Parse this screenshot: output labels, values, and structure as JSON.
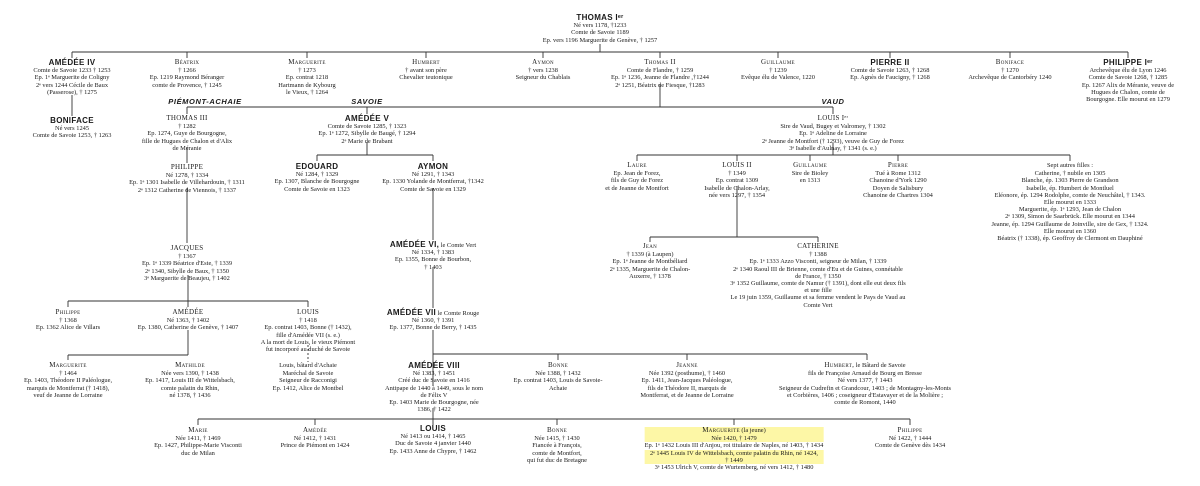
{
  "branches": {
    "piemont": "PIÉMONT-ACHAIE",
    "savoie": "SAVOIE",
    "vaud": "VAUD"
  },
  "highlight_color": "#fdf7a6",
  "nodes": {
    "thomas1": {
      "name": "THOMAS Iᵉʳ",
      "lines": [
        "Né vers 1178, †1233",
        "Comte de Savoie 1189",
        "Ep. vers 1196 Marguerite de Genève, † 1257"
      ]
    },
    "amedee4": {
      "name": "AMÉDÉE IV",
      "lines": [
        "Comte de Savoie 1233 † 1253",
        "Ep. 1ᵉ Marguerite de Coligny",
        "2ᵉ vers 1244 Cécile de Baux",
        "(Passerose), † 1275"
      ]
    },
    "beatrix": {
      "name": "Béatrix",
      "lines": [
        "† 1266",
        "Ep. 1219 Raymond Béranger",
        "comte de Provence, † 1245"
      ]
    },
    "marguerite1": {
      "name": "Marguerite",
      "lines": [
        "† 1273",
        "Ep. contrat 1218",
        "Hartmann de Kybourg",
        "le Vieux, † 1264"
      ]
    },
    "humbert1": {
      "name": "Humbert",
      "lines": [
        "† avant son père",
        "Chevalier teutonique"
      ]
    },
    "aymon1": {
      "name": "Aymon",
      "lines": [
        "† vers 1238",
        "Seigneur du Chablais"
      ]
    },
    "thomas2": {
      "name": "Thomas II",
      "lines": [
        "Comte de Flandre, † 1259",
        "Ep. 1ᵉ 1236, Jeanne de Flandre ,†1244",
        "2ᵉ 1251, Béatrix de Fiesque, †1283"
      ]
    },
    "guillaume1": {
      "name": "Guillaume",
      "lines": [
        "† 1239",
        "Evêque élu de Valence, 1220"
      ]
    },
    "pierre2": {
      "name": "PIERRE II",
      "lines": [
        "Comte de Savoie 1263, † 1268",
        "Ep. Agnès de Faucigny, † 1268"
      ]
    },
    "boniface1": {
      "name": "Boniface",
      "lines": [
        "† 1270",
        "Archevêque de Cantorbéry 1240"
      ]
    },
    "philippe1": {
      "name": "PHILIPPE Iᵉʳ",
      "lines": [
        "Archevêque élu de Lyon 1246",
        "Comte de Savoie 1268, † 1285",
        "Ep. 1267 Alix de Méranie, veuve de",
        "Hugues de Chalon, comte de",
        "Bourgogne. Elle mourut en 1279"
      ]
    },
    "boniface2": {
      "name": "BONIFACE",
      "lines": [
        "Né vers 1245",
        "Comte de Savoie 1253, † 1263"
      ]
    },
    "thomas3": {
      "name": "THOMAS III",
      "lines": [
        "† 1282",
        "Ep. 1274, Guye de Bourgogne,",
        "fille de Hugues de Chalon et d'Alix",
        "de Méranie"
      ]
    },
    "amedee5": {
      "name": "AMÉDÉE V",
      "lines": [
        "Comte de Savoie 1285, † 1323",
        "Ep. 1ᵉ 1272, Sibylle de Baugé, † 1294",
        "2ᵉ Marie de Brabant"
      ]
    },
    "louis1": {
      "name": "LOUIS Iᵉʳ",
      "lines": [
        "Sire de Vaud, Bugey et Valromey, † 1302",
        "Ep. 1ᵉ Adeline de Lorraine",
        "2ᵉ Jeanne de Montfort († 1293), veuve de Guy de Forez",
        "3ᵉ Isabelle d'Aulnay, † 1341 (s. e.)"
      ]
    },
    "philippe2": {
      "name": "PHILIPPE",
      "lines": [
        "Né 1278, † 1334",
        "Ep. 1ᵉ 1301 Isabelle de Villehardouin, † 1311",
        "2ᵉ 1312 Catherine de Viennois, † 1337"
      ]
    },
    "edouard": {
      "name": "EDOUARD",
      "lines": [
        "Né 1284, † 1329",
        "Ep. 1307, Blanche de Bourgogne",
        "Comte de Savoie en 1323"
      ]
    },
    "aymon2": {
      "name": "AYMON",
      "lines": [
        "Né 1291, † 1343",
        "Ep. 1330 Yolande de Montferrat, †1342",
        "Comte de Savoie en 1329"
      ]
    },
    "laure": {
      "name": "Laure",
      "lines": [
        "Ep. Jean de Forez,",
        "fils de Guy de Forez",
        "et de Jeanne de Montfort"
      ]
    },
    "louis2": {
      "name": "LOUIS II",
      "lines": [
        "† 1349",
        "Ep. contrat 1309",
        "Isabelle de Chalon-Arlay,",
        "née vers 1297, † 1354"
      ]
    },
    "guillaume2": {
      "name": "Guillaume",
      "lines": [
        "Sire de Bioley",
        "en 1313"
      ]
    },
    "pierre": {
      "name": "Pierre",
      "lines": [
        "Tué à Rome 1312",
        "Chanoine d'York 1290",
        "Doyen de Salisbury",
        "Chanoine de Chartres 1304"
      ]
    },
    "sept_filles": {
      "name": "Sept autres filles :",
      "lines": [
        "Catherine, † nubile en 1305",
        "Blanche, ép. 1303 Pierre de Grandson",
        "Isabelle, ép. Humbert de Montluel",
        "Eléonore, ép. 1294 Rodolphe, comte de Neuchâtel, † 1343.",
        "Elle mourut en 1333",
        "Marguerite, ép. 1ᵉ 1293, Jean de Chalon",
        "2ᵉ 1309, Simon de Saarbrück. Elle mourut en 1344",
        "Jeanne, ép. 1294 Guillaume de Joinville, sire de Gex, † 1324.",
        "Elle mourut en 1360",
        "Béatrix († 1338), ép. Geoffroy de Clermont en Dauphiné"
      ]
    },
    "jacques": {
      "name": "JACQUES",
      "lines": [
        "† 1367",
        "Ep. 1ᵉ 1339 Béatrice d'Este, † 1339",
        "2ᵉ 1340, Sibylle de Baux, † 1350",
        "3ᵉ Marguerite de Beaujeu, † 1402"
      ]
    },
    "amedee6": {
      "name": "AMÉDÉE VI,",
      "suffix": " le Comte Vert",
      "lines": [
        "Né 1334, † 1383",
        "Ep. 1355, Bonne de Bourbon,",
        "† 1403"
      ]
    },
    "jean": {
      "name": "Jean",
      "lines": [
        "† 1339 (à Laupen)",
        "Ep. 1ᵉ Jeanne de Montbéliard",
        "2ᵉ 1335, Marguerite de Chalon-",
        "Auxerre, † 1378"
      ]
    },
    "catherine": {
      "name": "CATHERINE",
      "lines": [
        "† 1388",
        "Ep. 1ᵉ 1333 Azzo Visconti, seigneur de Milan, † 1339",
        "2ᵉ 1340 Raoul III de Brienne, comte d'Eu et de Guines, connétable",
        "de France, † 1350",
        "3ᵉ 1352 Guillaume, comte de Namur († 1391), dont elle eut deux fils",
        "et une fille",
        "Le 19 juin 1359, Guillaume et sa femme vendent le Pays de Vaud au",
        "Comte Vert"
      ]
    },
    "philippe3": {
      "name": "Philippe",
      "lines": [
        "† 1368",
        "Ep. 1362 Alice de Villars"
      ]
    },
    "amedee_a": {
      "name": "AMÉDÉE",
      "lines": [
        "Né 1363, † 1402",
        "Ep. 1380, Catherine de Genève, † 1407"
      ]
    },
    "louis3": {
      "name": "LOUIS",
      "lines": [
        "† 1418",
        "Ep. contrat 1403, Bonne († 1432),",
        "fille d'Amédée VII (s. e.)",
        "A la mort de Louis, le vieux Piémont",
        "fut incorporé au duché de Savoie"
      ]
    },
    "amedee7": {
      "name": "AMÉDÉE VII",
      "suffix": " le Comte Rouge",
      "lines": [
        "Né 1360, † 1391",
        "Ep. 1377, Bonne de Berry, † 1435"
      ]
    },
    "marguerite2": {
      "name": "Marguerite",
      "lines": [
        "† 1464",
        "Ep. 1403, Théodore II Paléologue,",
        "marquis de Montferrat († 1418),",
        "veuf de Jeanne de Lorraine"
      ]
    },
    "mathilde": {
      "name": "Mathilde",
      "lines": [
        "Née vers 1390, † 1438",
        "Ep. 1417, Louis III de Wittelsbach,",
        "comte palatin du Rhin,",
        "né 1378, † 1436"
      ]
    },
    "louis_batard": {
      "name": "Louis, bâtard d'Achaie",
      "lines": [
        "Maréchal de Savoie",
        "Seigneur de Racconigi",
        "Ep. 1412, Alice de Montbel"
      ]
    },
    "amedee8": {
      "name": "AMÉDÉE VIII",
      "lines": [
        "Né 1383, † 1451",
        "Créé duc de Savoie en 1416",
        "Antipape de 1440 à 1449, sous le nom",
        "de Félix V",
        "Ep. 1403 Marie de Bourgogne, née",
        "1386, † 1422"
      ]
    },
    "bonne1": {
      "name": "Bonne",
      "lines": [
        "Née 1388, † 1432",
        "Ep. contrat 1403, Louis de Savoie-",
        "Achaie"
      ]
    },
    "jeanne": {
      "name": "Jeanne",
      "lines": [
        "Née 1392 (posthume), † 1460",
        "Ep. 1411, Jean-Jacques Paléologue,",
        "fils de Théodore II, marquis de",
        "Montferrat, et de Jeanne de Lorraine"
      ]
    },
    "humbert2": {
      "name": "Humbert,",
      "suffix": " le Bâtard de Savoie",
      "lines": [
        "fils de Françoise Arnaud de Bourg en Bresse",
        "Né vers 1377, † 1443",
        "Seigneur de Cudrefin et Grandcour, 1403 ; de Montagny-les-Monts",
        "et Corbières, 1406 ; coseigneur d'Estavayer et de la Molière ;",
        "comte de Romont, 1440"
      ]
    },
    "marie": {
      "name": "Marie",
      "lines": [
        "Née 1411, † 1469",
        "Ep. 1427, Philippe-Marie Visconti",
        "duc de Milan"
      ]
    },
    "amedee_b": {
      "name": "Amédée",
      "lines": [
        "Né 1412, † 1431",
        "Prince de Piémont en 1424"
      ]
    },
    "louis4": {
      "name": "LOUIS",
      "lines": [
        "Né 1413 ou 1414, † 1465",
        "Duc de Savoie 4 janvier 1440",
        "Ep. 1433 Anne de Chypre, † 1462"
      ]
    },
    "bonne2": {
      "name": "Bonne",
      "lines": [
        "Née 1415, † 1430",
        "Fiancée à François,",
        "comte de Montfort,",
        "qui fut duc de Bretagne"
      ]
    },
    "marguerite3": {
      "name": "Marguerite",
      "suffix": " (la jeune)",
      "highlighted": true,
      "lines": [
        "Née 1420, † 1479",
        "Ep. 1ᵉ 1432 Louis III d'Anjou, roi titulaire de Naples, né 1403, † 1434",
        "2ᵉ 1445 Louis IV de Wittelsbach, comte palatin du Rhin, né 1424,",
        "† 1449",
        "3ᵉ 1453 Ulrich V, comte de Wurtemberg, né vers 1412, † 1480"
      ]
    },
    "philippe4": {
      "name": "Philippe",
      "lines": [
        "Né 1422, † 1444",
        "Comte de Genève dès 1434"
      ]
    }
  }
}
